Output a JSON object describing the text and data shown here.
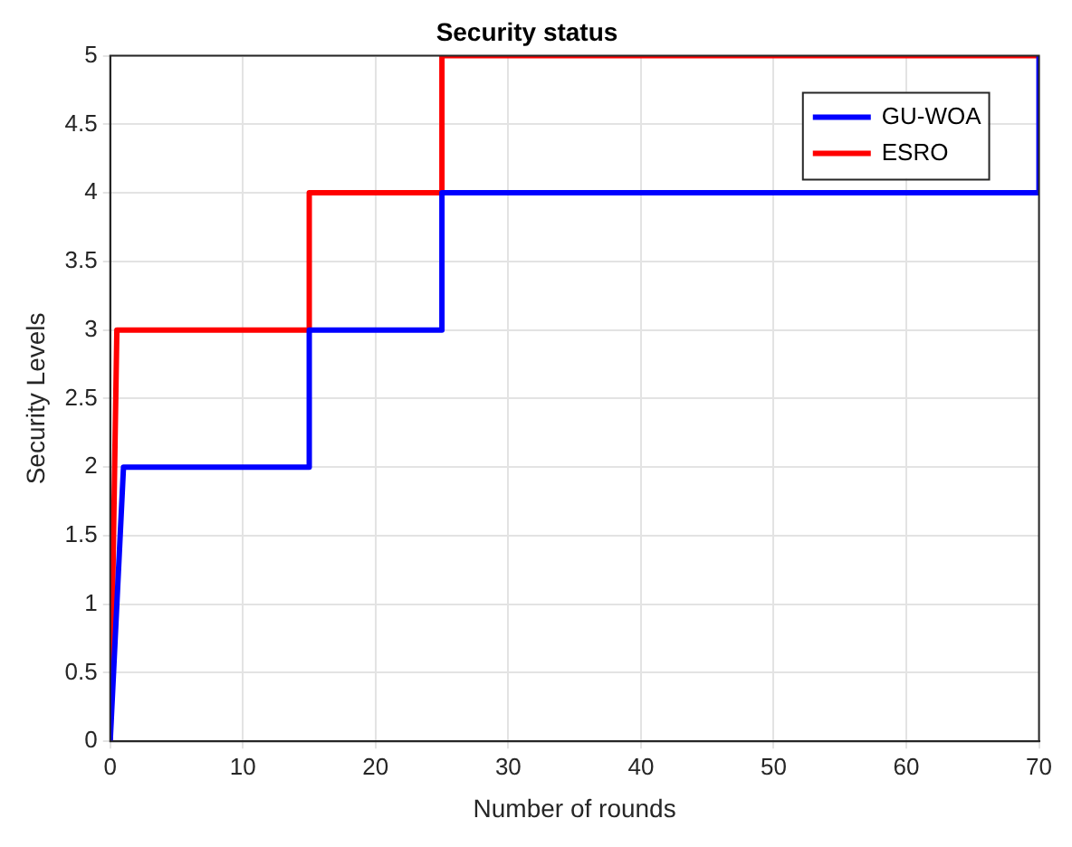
{
  "chart_data": {
    "type": "line",
    "title": "Security status",
    "xlabel": "Number of rounds",
    "ylabel": "Security Levels",
    "series": [
      {
        "name": "GU-WOA",
        "color": "#0000ff",
        "x": [
          0,
          1,
          15,
          15,
          25,
          25,
          70,
          70
        ],
        "values": [
          0,
          2,
          2,
          3,
          3,
          4,
          4,
          5
        ]
      },
      {
        "name": "ESRO",
        "color": "#ff0000",
        "x": [
          0,
          0.5,
          15,
          15,
          25,
          25,
          70
        ],
        "values": [
          0,
          3,
          3,
          4,
          4,
          5,
          5
        ]
      }
    ],
    "xlim": [
      0,
      70
    ],
    "xticks": [
      0,
      10,
      20,
      30,
      40,
      50,
      60,
      70
    ],
    "ylim": [
      0,
      5
    ],
    "yticks": [
      0,
      0.5,
      1,
      1.5,
      2,
      2.5,
      3,
      3.5,
      4,
      4.5,
      5
    ],
    "grid": true,
    "legend": "top right",
    "line_style": "solid",
    "marker": "none"
  }
}
